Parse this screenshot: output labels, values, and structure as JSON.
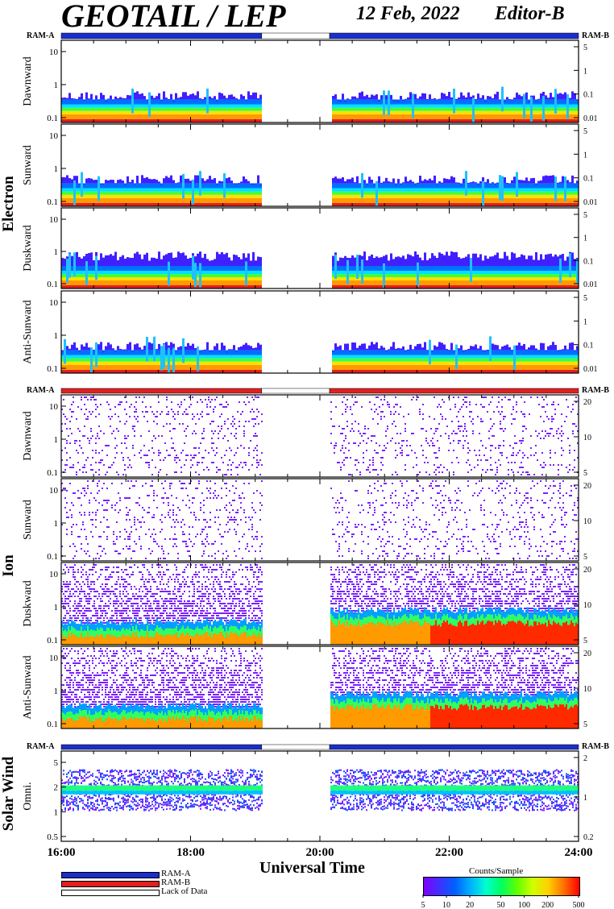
{
  "header": {
    "title": "GEOTAIL / LEP",
    "date": "12 Feb, 2022",
    "editor": "Editor-B"
  },
  "chart_data": {
    "type": "heatmap",
    "x_axis": {
      "title": "Universal Time",
      "ticks": [
        "16:00",
        "18:00",
        "20:00",
        "22:00",
        "24:00"
      ],
      "range_hours": [
        16,
        24
      ]
    },
    "data_gap_hours": [
      19.1,
      20.15
    ],
    "mode_bars": {
      "left_label": "RAM-A",
      "right_label": "RAM-B",
      "electron": {
        "colors": [
          "#1a2ecc",
          "#ffffff",
          "#1a2ecc"
        ]
      },
      "ion": {
        "colors": [
          "#e22020",
          "#ffffff",
          "#e22020"
        ]
      },
      "solar_wind": {
        "colors": [
          "#1a2ecc",
          "#ffffff",
          "#1a2ecc"
        ]
      }
    },
    "groups": [
      {
        "name": "Electron",
        "panels": [
          {
            "label": "Dawnward",
            "left_ticks": [
              "0.1",
              "1",
              "10"
            ],
            "right_ticks": [
              "0.01",
              "0.1",
              "1",
              "5"
            ]
          },
          {
            "label": "Sunward",
            "left_ticks": [
              "0.1",
              "1",
              "10"
            ],
            "right_ticks": [
              "0.01",
              "0.1",
              "1",
              "5"
            ]
          },
          {
            "label": "Duskward",
            "left_ticks": [
              "0.1",
              "1",
              "10"
            ],
            "right_ticks": [
              "0.01",
              "0.1",
              "1",
              "5"
            ]
          },
          {
            "label": "Anti-Sunward",
            "left_ticks": [
              "0.1",
              "1",
              "10"
            ],
            "right_ticks": [
              "0.01",
              "0.1",
              "1",
              "5"
            ]
          }
        ]
      },
      {
        "name": "Ion",
        "panels": [
          {
            "label": "Dawnward",
            "left_ticks": [
              "0.1",
              "1",
              "10"
            ],
            "right_ticks": [
              "5",
              "10",
              "20"
            ]
          },
          {
            "label": "Sunward",
            "left_ticks": [
              "0.1",
              "1",
              "10"
            ],
            "right_ticks": [
              "5",
              "10",
              "20"
            ]
          },
          {
            "label": "Duskward",
            "left_ticks": [
              "0.1",
              "1",
              "10"
            ],
            "right_ticks": [
              "5",
              "10",
              "20"
            ]
          },
          {
            "label": "Anti-Sunward",
            "left_ticks": [
              "0.1",
              "1",
              "10"
            ],
            "right_ticks": [
              "5",
              "10",
              "20"
            ]
          }
        ]
      },
      {
        "name": "Solar Wind",
        "panels": [
          {
            "label": "Omni.",
            "left_ticks": [
              "0.5",
              "1",
              "2",
              "5"
            ],
            "right_ticks": [
              "0.2",
              "1",
              "2"
            ]
          }
        ]
      }
    ],
    "legend": {
      "items": [
        {
          "label": "RAM-A",
          "color": "#1a2ecc"
        },
        {
          "label": "RAM-B",
          "color": "#e22020"
        },
        {
          "label": "Lack of Data",
          "color": "#ffffff"
        }
      ]
    },
    "colorbar": {
      "title": "Counts/Sample",
      "ticks": [
        "5",
        "10",
        "20",
        "50",
        "100",
        "200",
        "500"
      ],
      "range": [
        5,
        500
      ],
      "scale": "log"
    }
  }
}
